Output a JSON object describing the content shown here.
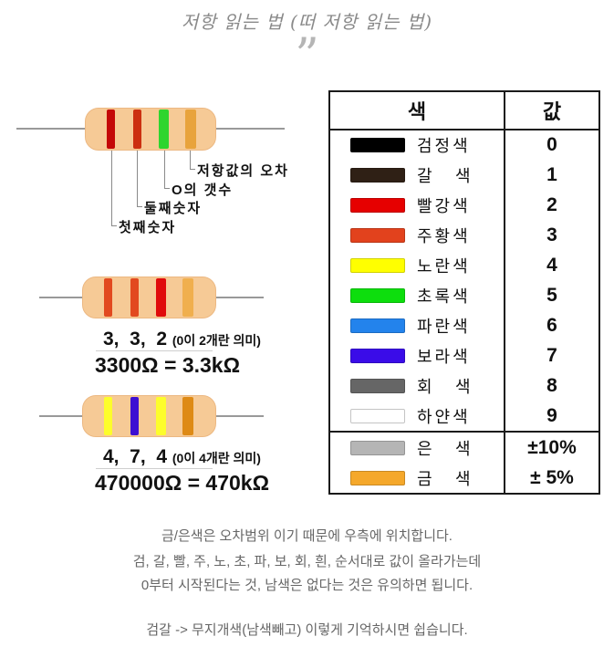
{
  "page": {
    "title": "저항 읽는 법 (떠 저항 읽는 법)",
    "quote_mark": "”"
  },
  "diagram": {
    "body_color": "#F6CA96",
    "wire_color": "#999999",
    "callouts": [
      {
        "label": "첫째숫자"
      },
      {
        "label": "둘째숫자"
      },
      {
        "label": "O의 갯수"
      },
      {
        "label": "저항값의 오차"
      }
    ],
    "resistors": [
      {
        "name": "labeled-example",
        "bands": [
          "#C40808",
          "#CC2F10",
          "#2ED52E",
          "#E8A33C"
        ]
      },
      {
        "name": "3300-ohm-example",
        "bands": [
          "#E2491F",
          "#E2491F",
          "#E00B0B",
          "#F0AF4E"
        ],
        "digits": "3,  3,  2 ",
        "note": "(0이 2개란 의미)",
        "equation": "3300Ω = 3.3kΩ"
      },
      {
        "name": "470k-ohm-example",
        "bands": [
          "#FDFD2B",
          "#3D0FD2",
          "#FDFD2B",
          "#DE8A15"
        ],
        "digits": "4,  7,  4 ",
        "note": "(0이 4개란 의미)",
        "equation": "470000Ω = 470kΩ"
      }
    ]
  },
  "table": {
    "headers": {
      "color": "색",
      "value": "값"
    },
    "rows": [
      {
        "swatch": "#000000",
        "label": "검정색",
        "value": "0"
      },
      {
        "swatch": "#2F2015",
        "label": "갈   색",
        "value": "1"
      },
      {
        "swatch": "#E60000",
        "label": "빨강색",
        "value": "2"
      },
      {
        "swatch": "#E2421D",
        "label": "주황색",
        "value": "3"
      },
      {
        "swatch": "#FFFF00",
        "label": "노란색",
        "value": "4"
      },
      {
        "swatch": "#0DDE0D",
        "label": "초록색",
        "value": "5"
      },
      {
        "swatch": "#2383EC",
        "label": "파란색",
        "value": "6"
      },
      {
        "swatch": "#3A0CE8",
        "label": "보라색",
        "value": "7"
      },
      {
        "swatch": "#666666",
        "label": "회   색",
        "value": "8"
      },
      {
        "swatch": "#FFFFFF",
        "label": "하얀색",
        "value": "9",
        "light": true
      },
      {
        "swatch": "#B5B5B5",
        "label": "은   색",
        "value": "±10%",
        "separator": true
      },
      {
        "swatch": "#F5A82B",
        "label": "금   색",
        "value": "± 5%"
      }
    ]
  },
  "notes": [
    "금/은색은 오차범위 이기 때문에 우측에 위치합니다.",
    "검, 갈, 빨, 주, 노, 초, 파, 보, 회, 흰, 순서대로 값이 올라가는데",
    "0부터 시작된다는 것, 남색은 없다는 것은 유의하면 됩니다.",
    "검갈 -> 무지개색(남색빼고) 이렇게 기억하시면 쉽습니다."
  ]
}
